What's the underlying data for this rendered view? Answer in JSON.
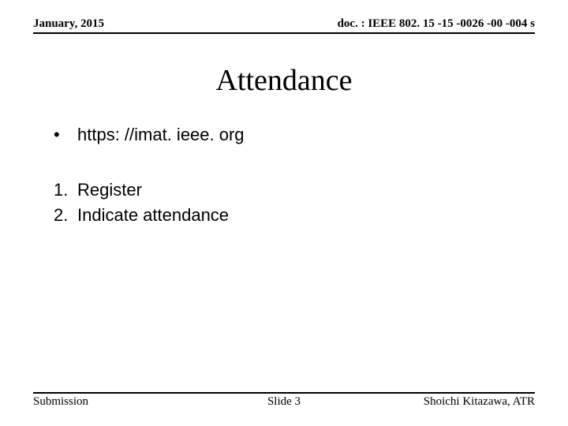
{
  "header": {
    "date": "January, 2015",
    "doc": "doc. : IEEE 802. 15 -15 -0026 -00 -004 s"
  },
  "title": "Attendance",
  "content": {
    "bullet_marker": "•",
    "url_text": "https: //imat. ieee. org",
    "items": [
      {
        "marker": "1.",
        "text": "Register"
      },
      {
        "marker": "2.",
        "text": "Indicate attendance"
      }
    ]
  },
  "footer": {
    "left": "Submission",
    "center": "Slide 3",
    "right": "Shoichi Kitazawa, ATR"
  }
}
